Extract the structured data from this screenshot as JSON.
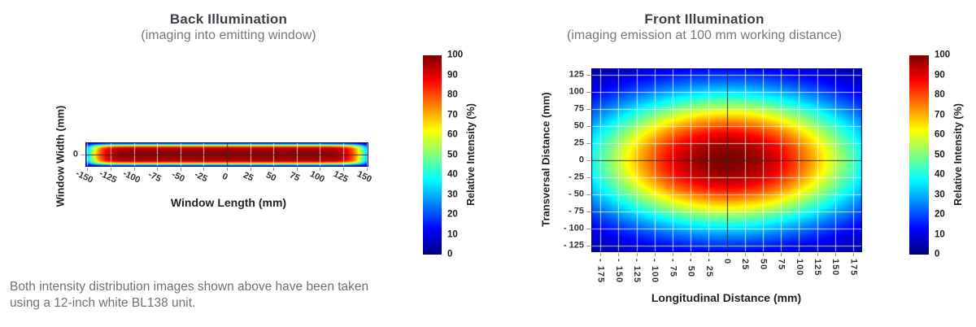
{
  "footnote": {
    "line1": "Both intensity distribution images shown above have been taken",
    "line2": "using a 12-inch white BL138 unit."
  },
  "chart_data": [
    {
      "type": "heatmap",
      "id": "back",
      "title": "Back Illumination",
      "subtitle": "(imaging into emitting window)",
      "xlabel": "Window Length (mm)",
      "ylabel": "Window Width (mm)",
      "colorbar_label": "Relative Intensity (%)",
      "colormap": "jet",
      "grid": true,
      "grid_step_mm": 25,
      "crosshair_at_zero": true,
      "x_range": [
        -152,
        152
      ],
      "y_range": [
        -13,
        13
      ],
      "x_tick_label_style": "oblique",
      "x_ticks": [
        {
          "v": -150,
          "label": "-150"
        },
        {
          "v": -125,
          "label": "-125"
        },
        {
          "v": -100,
          "label": "-100"
        },
        {
          "v": -75,
          "label": "-75"
        },
        {
          "v": -50,
          "label": "-50"
        },
        {
          "v": -25,
          "label": "-25"
        },
        {
          "v": 0,
          "label": "0"
        },
        {
          "v": 25,
          "label": "25"
        },
        {
          "v": 50,
          "label": "50"
        },
        {
          "v": 75,
          "label": "75"
        },
        {
          "v": 100,
          "label": "100"
        },
        {
          "v": 125,
          "label": "125"
        },
        {
          "v": 150,
          "label": "150"
        }
      ],
      "y_ticks": [
        {
          "v": 0,
          "label": "0"
        }
      ],
      "colorbar_range": [
        0,
        100
      ],
      "colorbar_ticks": [
        {
          "v": 100,
          "label": "100"
        },
        {
          "v": 90,
          "label": "90"
        },
        {
          "v": 80,
          "label": "80"
        },
        {
          "v": 70,
          "label": "70"
        },
        {
          "v": 60,
          "label": "60"
        },
        {
          "v": 50,
          "label": "50"
        },
        {
          "v": 40,
          "label": "40"
        },
        {
          "v": 30,
          "label": "30"
        },
        {
          "v": 20,
          "label": "20"
        },
        {
          "v": 10,
          "label": "10"
        },
        {
          "v": 0,
          "label": "0"
        }
      ],
      "intensity_model": {
        "kind": "plateau_strip",
        "peak": 98,
        "x_scale": 149,
        "x_power": 16,
        "y_scale": 10.8,
        "y_power": 6
      }
    },
    {
      "type": "heatmap",
      "id": "front",
      "title": "Front Illumination",
      "subtitle": "(imaging emission at 100 mm working distance)",
      "xlabel": "Longitudinal Distance (mm)",
      "ylabel": "Transversal Distance (mm)",
      "colorbar_label": "Relative Intensity (%)",
      "colormap": "jet",
      "grid": true,
      "grid_step_mm": 25,
      "crosshair_at_zero": true,
      "x_range": [
        -187.5,
        187.5
      ],
      "y_range": [
        -134,
        134
      ],
      "x_tick_label_style": "vertical",
      "x_ticks": [
        {
          "v": -175,
          "label": "- 175"
        },
        {
          "v": -150,
          "label": "- 150"
        },
        {
          "v": -125,
          "label": "- 125"
        },
        {
          "v": -100,
          "label": "- 100"
        },
        {
          "v": -75,
          "label": "- 75"
        },
        {
          "v": -50,
          "label": "- 50"
        },
        {
          "v": -25,
          "label": "- 25"
        },
        {
          "v": 0,
          "label": "0"
        },
        {
          "v": 25,
          "label": "25"
        },
        {
          "v": 50,
          "label": "50"
        },
        {
          "v": 75,
          "label": "75"
        },
        {
          "v": 100,
          "label": "100"
        },
        {
          "v": 125,
          "label": "125"
        },
        {
          "v": 150,
          "label": "150"
        },
        {
          "v": 175,
          "label": "175"
        }
      ],
      "y_ticks": [
        {
          "v": 125,
          "label": "125"
        },
        {
          "v": 100,
          "label": "100"
        },
        {
          "v": 75,
          "label": "75"
        },
        {
          "v": 50,
          "label": "50"
        },
        {
          "v": 25,
          "label": "25"
        },
        {
          "v": 0,
          "label": "0"
        },
        {
          "v": -25,
          "label": "- 25"
        },
        {
          "v": -50,
          "label": "- 50"
        },
        {
          "v": -75,
          "label": "- 75"
        },
        {
          "v": -100,
          "label": "- 100"
        },
        {
          "v": -125,
          "label": "- 125"
        }
      ],
      "colorbar_range": [
        0,
        100
      ],
      "colorbar_ticks": [
        {
          "v": 100,
          "label": "100"
        },
        {
          "v": 90,
          "label": "90"
        },
        {
          "v": 80,
          "label": "80"
        },
        {
          "v": 70,
          "label": "70"
        },
        {
          "v": 60,
          "label": "60"
        },
        {
          "v": 50,
          "label": "50"
        },
        {
          "v": 40,
          "label": "40"
        },
        {
          "v": 30,
          "label": "30"
        },
        {
          "v": 20,
          "label": "20"
        },
        {
          "v": 10,
          "label": "10"
        },
        {
          "v": 0,
          "label": "0"
        }
      ],
      "intensity_model": {
        "kind": "elliptical_gaussian",
        "peak": 100,
        "x_scale": 192,
        "y_scale": 97,
        "power": 1.12
      }
    }
  ]
}
